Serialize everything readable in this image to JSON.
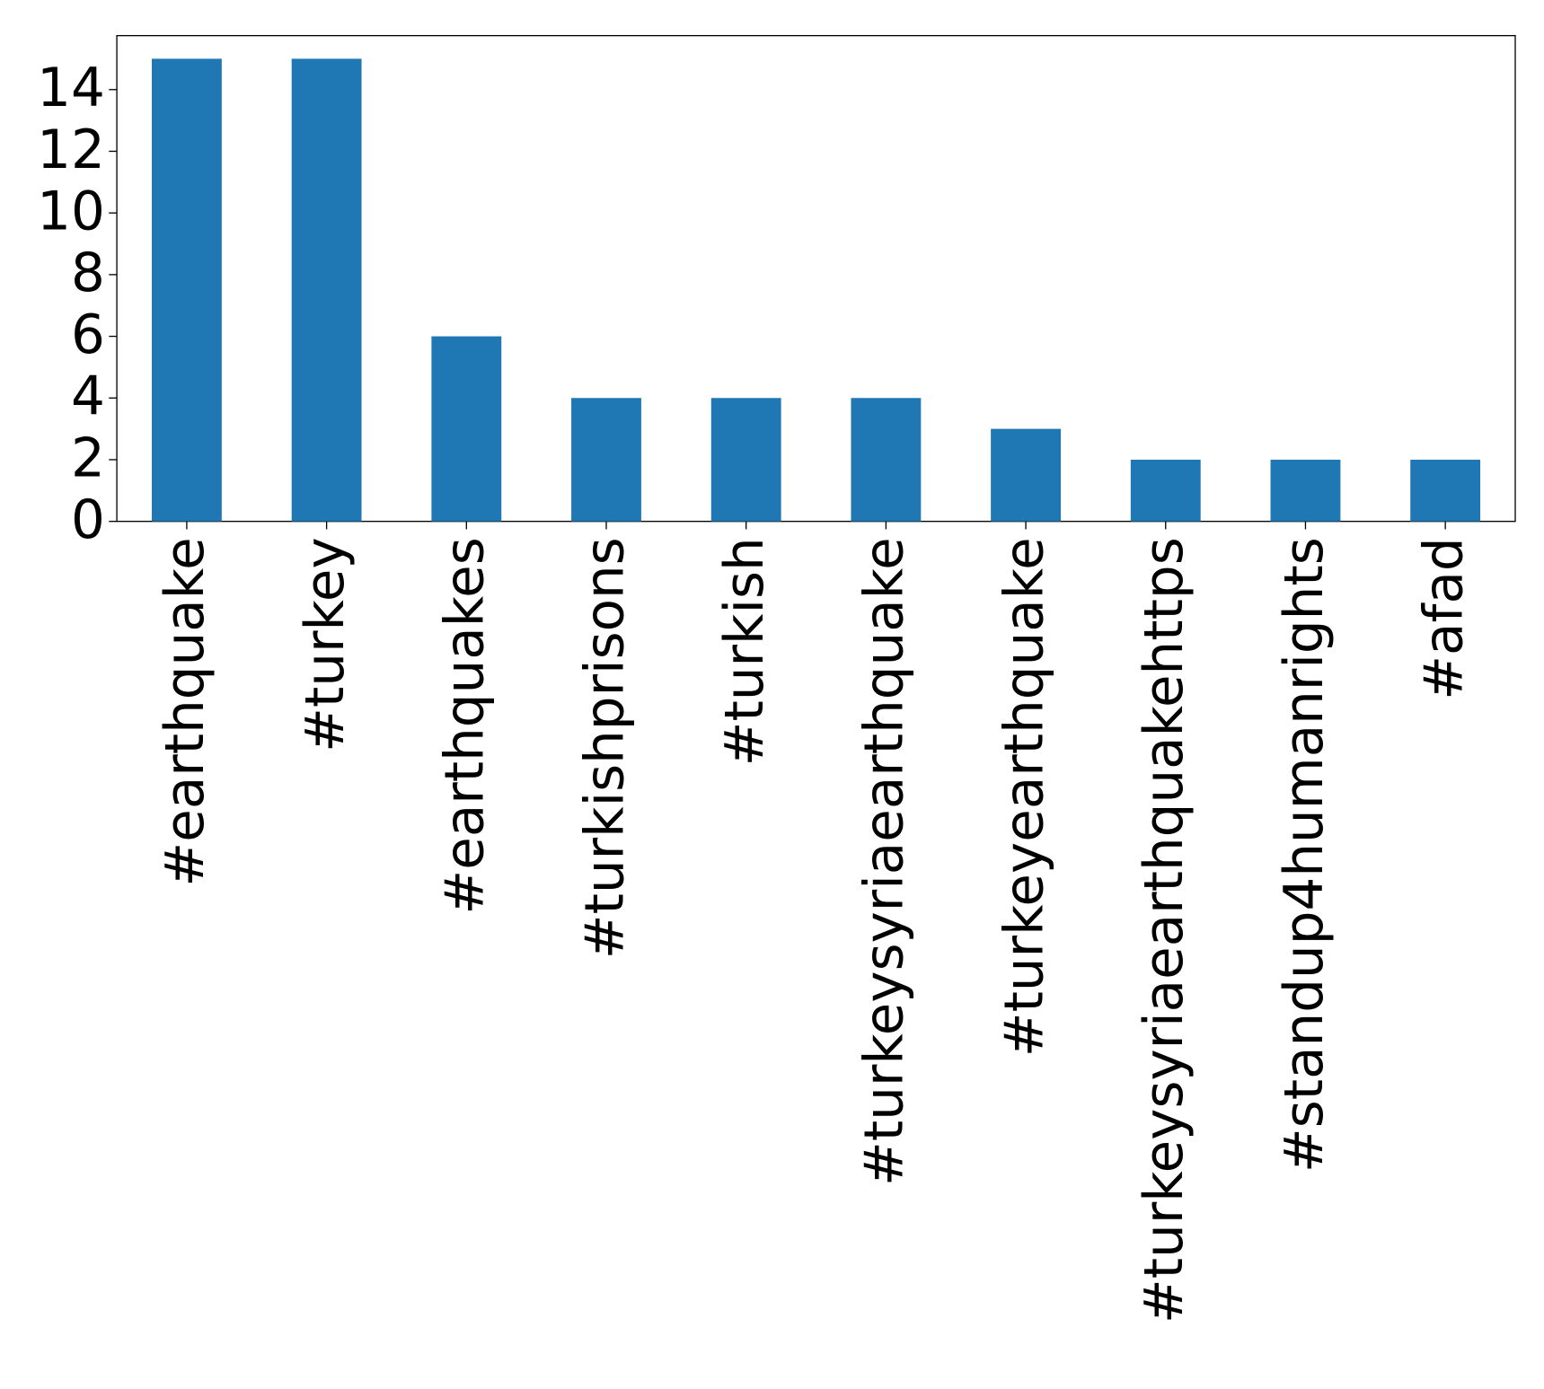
{
  "chart_data": {
    "type": "bar",
    "categories": [
      "#earthquake",
      "#turkey",
      "#earthquakes",
      "#turkishprisons",
      "#turkish",
      "#turkeysyriaearthquake",
      "#turkeyearthquake",
      "#turkeysyriaearthquakehttps",
      "#standup4humanrights",
      "#afad"
    ],
    "values": [
      15,
      15,
      6,
      4,
      4,
      4,
      3,
      2,
      2,
      2
    ],
    "color": "#1f77b4",
    "ylim": [
      0,
      15.75
    ],
    "yticks": [
      0,
      2,
      4,
      6,
      8,
      10,
      12,
      14
    ],
    "grid": false
  }
}
